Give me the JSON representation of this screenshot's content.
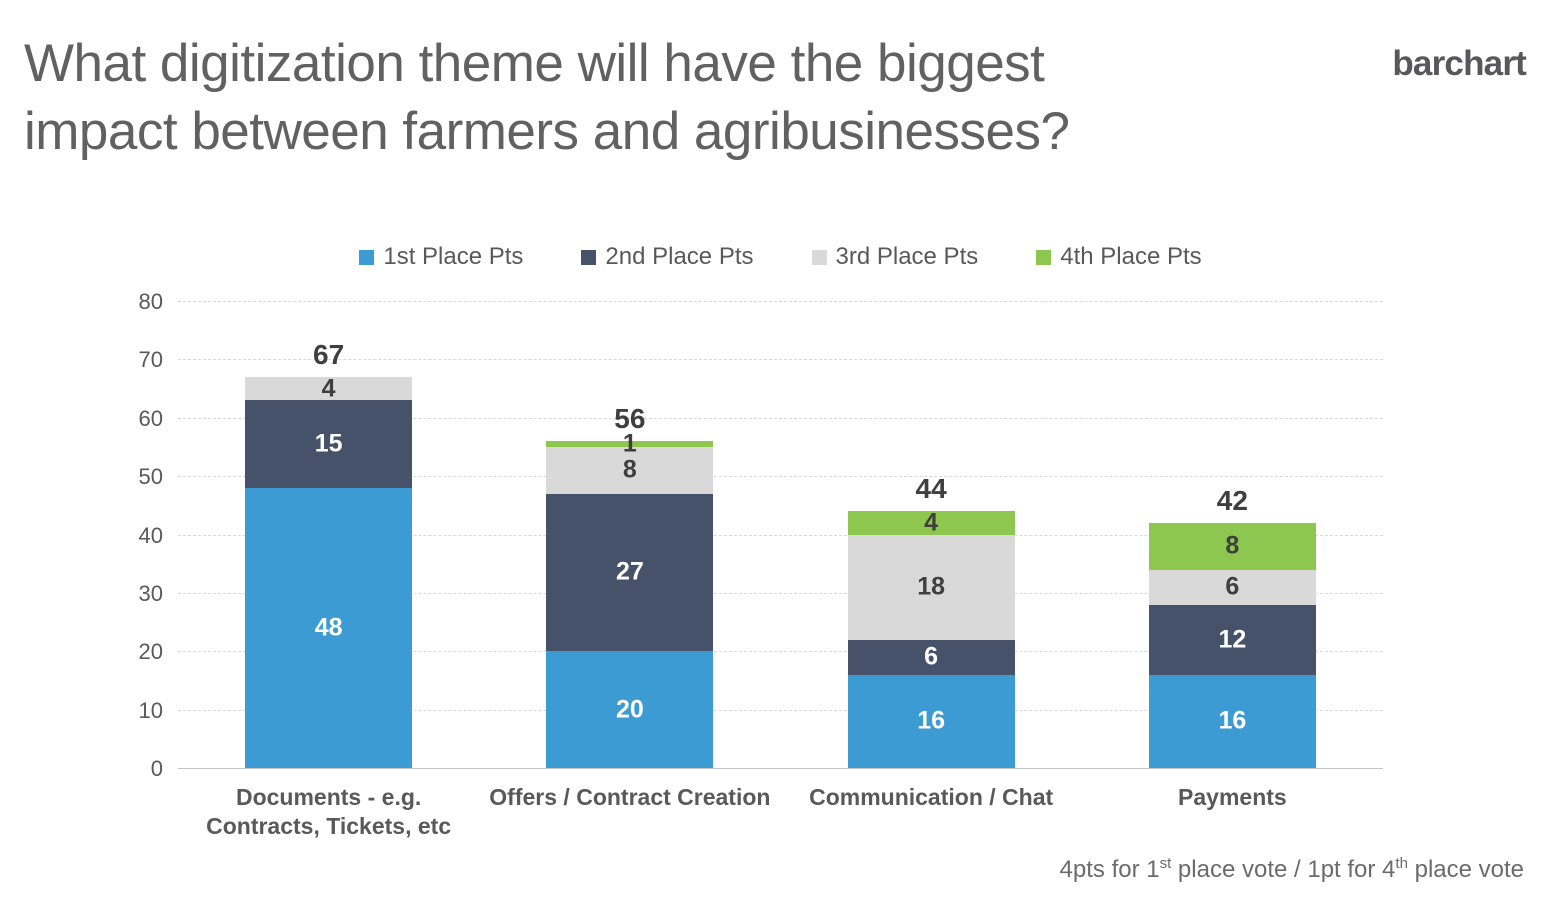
{
  "header": {
    "title_lines": [
      "What digitization theme will have the biggest",
      "impact between farmers and agribusinesses?"
    ],
    "logo": "barchart"
  },
  "chart_data": {
    "type": "bar",
    "subtype": "stacked",
    "categories": [
      "Documents - e.g.\nContracts, Tickets, etc",
      "Offers / Contract Creation",
      "Communication / Chat",
      "Payments"
    ],
    "series": [
      {
        "name": "1st Place Pts",
        "color": "#3D9BD3",
        "label_color": "#FFFFFF",
        "values": [
          48,
          20,
          16,
          16
        ]
      },
      {
        "name": "2nd Place Pts",
        "color": "#46526A",
        "label_color": "#FFFFFF",
        "values": [
          15,
          27,
          6,
          12
        ]
      },
      {
        "name": "3rd Place Pts",
        "color": "#D9D9D9",
        "label_color": "#3F3F3F",
        "values": [
          4,
          8,
          18,
          6
        ]
      },
      {
        "name": "4th Place Pts",
        "color": "#8DC74F",
        "label_color": "#3F3F3F",
        "values": [
          0,
          1,
          4,
          8
        ]
      }
    ],
    "totals": [
      67,
      56,
      44,
      42
    ],
    "yticks": [
      0,
      10,
      20,
      30,
      40,
      50,
      60,
      70,
      80
    ],
    "ylim": [
      0,
      80
    ],
    "xlabel": "",
    "ylabel": "",
    "grid": true,
    "legend_position": "top"
  },
  "footnote": {
    "segments": [
      {
        "text": "4pts for 1",
        "sup": false
      },
      {
        "text": "st",
        "sup": true
      },
      {
        "text": " place vote / 1pt for 4",
        "sup": false
      },
      {
        "text": "th",
        "sup": true
      },
      {
        "text": " place vote",
        "sup": false
      }
    ]
  }
}
